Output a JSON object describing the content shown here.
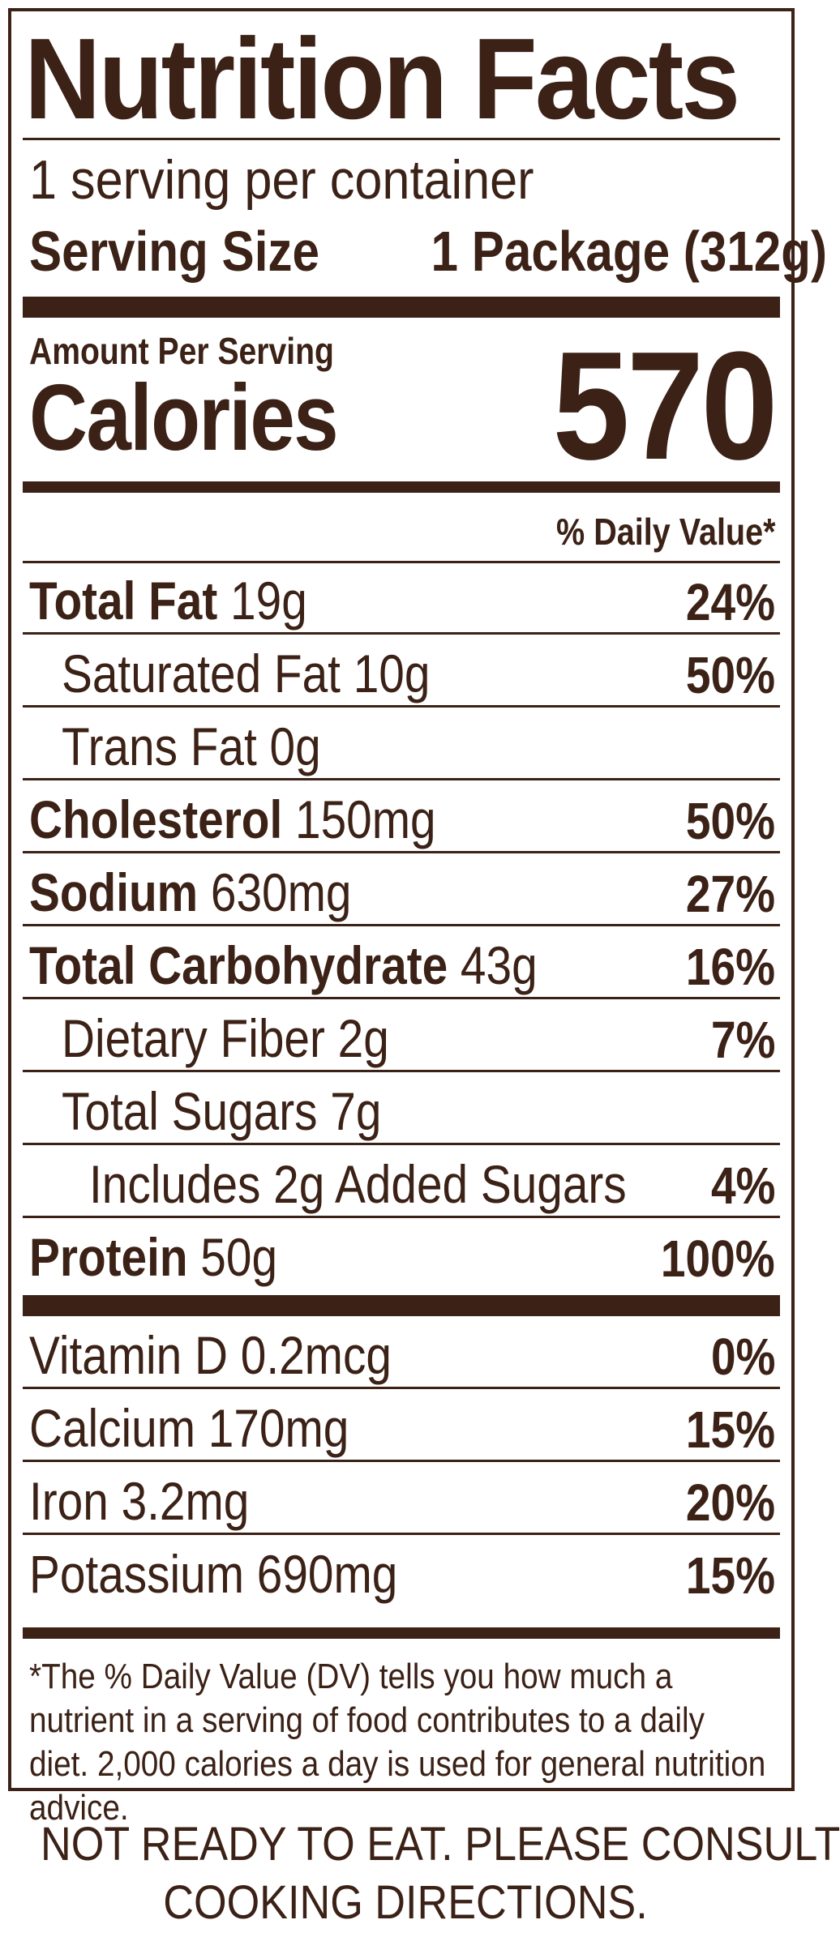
{
  "title": "Nutrition Facts",
  "servings_per_container": "1 serving per container",
  "serving_size": {
    "label": "Serving Size",
    "value": "1 Package (312g)"
  },
  "amount_per_serving": "Amount Per Serving",
  "calories": {
    "label": "Calories",
    "value": "570"
  },
  "daily_value_header": "% Daily Value*",
  "nutrients": [
    {
      "name": "Total Fat",
      "amount": "19g",
      "dv": "24%"
    },
    {
      "name": "Saturated Fat",
      "amount": "10g",
      "dv": "50%"
    },
    {
      "name": "Trans Fat",
      "amount": "0g",
      "dv": ""
    },
    {
      "name": "Cholesterol",
      "amount": "150mg",
      "dv": "50%"
    },
    {
      "name": "Sodium",
      "amount": "630mg",
      "dv": "27%"
    },
    {
      "name": "Total Carbohydrate",
      "amount": "43g",
      "dv": "16%"
    },
    {
      "name": "Dietary Fiber",
      "amount": "2g",
      "dv": "7%"
    },
    {
      "name": "Total Sugars",
      "amount": "7g",
      "dv": ""
    },
    {
      "name": "Includes 2g Added Sugars",
      "amount": "",
      "dv": "4%"
    },
    {
      "name": "Protein",
      "amount": "50g",
      "dv": "100%"
    }
  ],
  "vitamins": [
    {
      "name": "Vitamin D 0.2mcg",
      "dv": "0%"
    },
    {
      "name": "Calcium 170mg",
      "dv": "15%"
    },
    {
      "name": "Iron 3.2mg",
      "dv": "20%"
    },
    {
      "name": "Potassium 690mg",
      "dv": "15%"
    }
  ],
  "footnote": "*The % Daily Value (DV) tells you how much a nutrient in a serving of food contributes to a daily diet. 2,000 calories a day is used for general nutrition advice.",
  "notice": {
    "line1": "NOT READY TO EAT. PLEASE CONSULT",
    "line2": "COOKING DIRECTIONS."
  },
  "colors": {
    "ink": "#3b2116",
    "background": "#ffffff"
  }
}
